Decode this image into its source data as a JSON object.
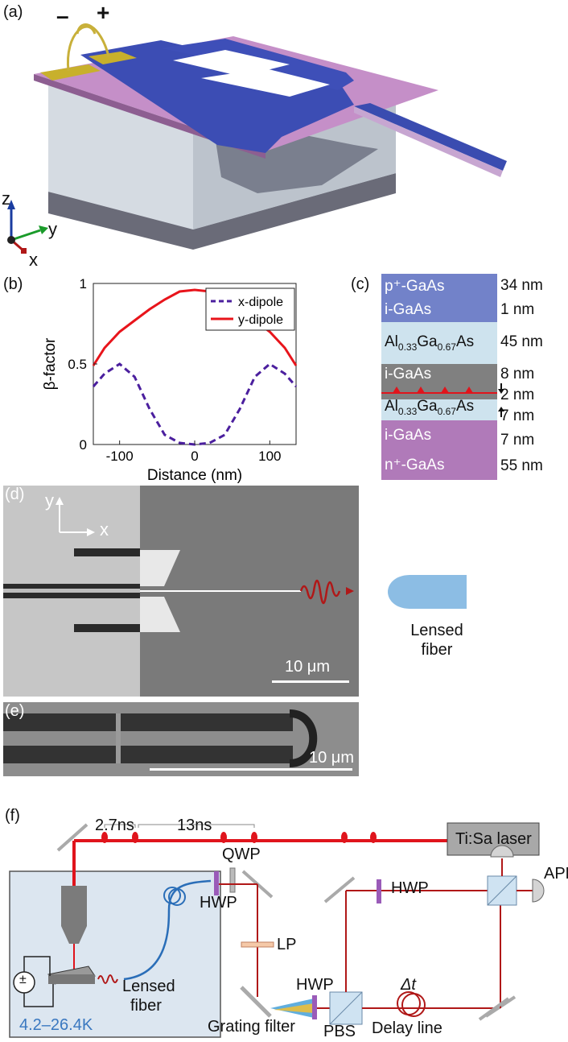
{
  "panels": {
    "a": "(a)",
    "b": "(b)",
    "c": "(c)",
    "d": "(d)",
    "e": "(e)",
    "f": "(f)"
  },
  "panel_a": {
    "minus": "–",
    "plus": "+",
    "axis_z": "z",
    "axis_y": "y",
    "axis_x": "x"
  },
  "chart_data": {
    "type": "line",
    "xlabel": "Distance (nm)",
    "ylabel": "β-factor",
    "xlim": [
      -135,
      135
    ],
    "ylim": [
      0,
      1
    ],
    "xticks": [
      "-100",
      "0",
      "100"
    ],
    "yticks": [
      "0",
      "0.5",
      "1"
    ],
    "legend_position": "top-right",
    "x": [
      -135,
      -120,
      -100,
      -80,
      -60,
      -40,
      -20,
      0,
      20,
      40,
      60,
      80,
      100,
      120,
      135
    ],
    "series": [
      {
        "name": "x-dipole",
        "color": "#4b1f9e",
        "style": "dashed",
        "values": [
          0.36,
          0.44,
          0.5,
          0.42,
          0.22,
          0.06,
          0.01,
          0.0,
          0.01,
          0.06,
          0.22,
          0.42,
          0.5,
          0.44,
          0.36
        ]
      },
      {
        "name": "y-dipole",
        "color": "#e8141b",
        "style": "solid",
        "values": [
          0.49,
          0.6,
          0.7,
          0.77,
          0.84,
          0.9,
          0.95,
          0.96,
          0.95,
          0.9,
          0.84,
          0.77,
          0.7,
          0.6,
          0.49
        ]
      }
    ]
  },
  "panel_c": {
    "layers": [
      {
        "name": "p⁺-GaAs",
        "thickness": "34 nm"
      },
      {
        "name": "i-GaAs",
        "thickness": "1 nm"
      },
      {
        "name": "Al0.33Ga0.67As",
        "thickness": "45 nm"
      },
      {
        "name": "i-GaAs",
        "thickness": "8 nm"
      },
      {
        "name": "",
        "thickness": "2 nm"
      },
      {
        "name": "Al0.33Ga0.67As",
        "thickness": "7 nm"
      },
      {
        "name": "i-GaAs",
        "thickness": "7 nm"
      },
      {
        "name": "n⁺-GaAs",
        "thickness": "55 nm"
      }
    ],
    "al": "Al",
    "al_sub": "0.33",
    "ga": "Ga",
    "ga_sub": "0.67",
    "as": "As",
    "colors": {
      "p": "#7080c8",
      "al": "#cde4ef",
      "igaas": "#7f7f7f",
      "n": "#b07cb8"
    }
  },
  "panel_d": {
    "axis_y": "y",
    "axis_x": "x",
    "scalebar": "10 μm",
    "fiber_label_1": "Lensed",
    "fiber_label_2": "fiber"
  },
  "panel_e": {
    "scalebar": "10 μm"
  },
  "panel_f": {
    "t1": "2.7ns",
    "t2": "13ns",
    "laser": "Ti:Sa laser",
    "qwp": "QWP",
    "hwp1": "HWP",
    "hwp2": "HWP",
    "hwp3": "HWP",
    "lp": "LP",
    "apds": "APDs",
    "dt": "Δt",
    "delay": "Delay line",
    "pbs": "PBS",
    "grating": "Grating filter",
    "lensed1": "Lensed",
    "lensed2": "fiber",
    "temp": "4.2–26.4K",
    "pm": "±"
  }
}
